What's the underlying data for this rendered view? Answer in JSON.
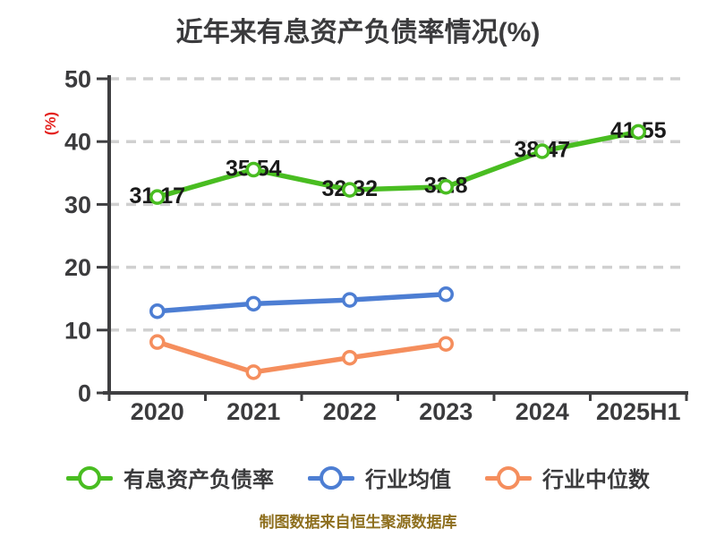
{
  "header": {
    "title": "近年来有息资产负债率情况(%)"
  },
  "footer": {
    "text": "制图数据来自恒生聚源数据库"
  },
  "colors": {
    "title_text": "#3b3b3d",
    "axis": "#3f3f41",
    "axis_text": "#3b3b3d",
    "grid": "#d0d0d0",
    "green": "#49bd21",
    "blue": "#4d7ed3",
    "orange": "#f58e5d",
    "data_label_text": "#1a1a1a",
    "y_axis_label_red": "#e42320",
    "footer_text": "#8e6f1e",
    "marker_fill": "#ffffff"
  },
  "legend": {
    "items": [
      {
        "key": "interest-bearing-debt-ratio",
        "label": "有息资产负债率",
        "color": "green"
      },
      {
        "key": "industry-average",
        "label": "行业均值",
        "color": "blue"
      },
      {
        "key": "industry-median",
        "label": "行业中位数",
        "color": "orange"
      }
    ]
  },
  "chart_data": {
    "type": "line",
    "title": "近年来有息资产负债率情况(%)",
    "xlabel": "",
    "ylabel": "(%)",
    "ylim": [
      0,
      50
    ],
    "yticks": [
      0,
      10,
      20,
      30,
      40,
      50
    ],
    "grid": "horizontal-dashed",
    "legend_position": "bottom",
    "marker_style": "white-filled-circle",
    "categories": [
      "2020",
      "2021",
      "2022",
      "2023",
      "2024",
      "2025H1"
    ],
    "series": [
      {
        "key": "interest-bearing-debt-ratio",
        "name": "有息资产负债率",
        "color": "green",
        "show_labels": true,
        "values": [
          31.17,
          35.54,
          32.32,
          32.8,
          38.47,
          41.55
        ]
      },
      {
        "key": "industry-average",
        "name": "行业均值",
        "color": "blue",
        "show_labels": false,
        "values": [
          13.0,
          14.2,
          14.8,
          15.7,
          null,
          null
        ]
      },
      {
        "key": "industry-median",
        "name": "行业中位数",
        "color": "orange",
        "show_labels": false,
        "values": [
          8.1,
          3.3,
          5.6,
          7.8,
          null,
          null
        ]
      }
    ]
  }
}
